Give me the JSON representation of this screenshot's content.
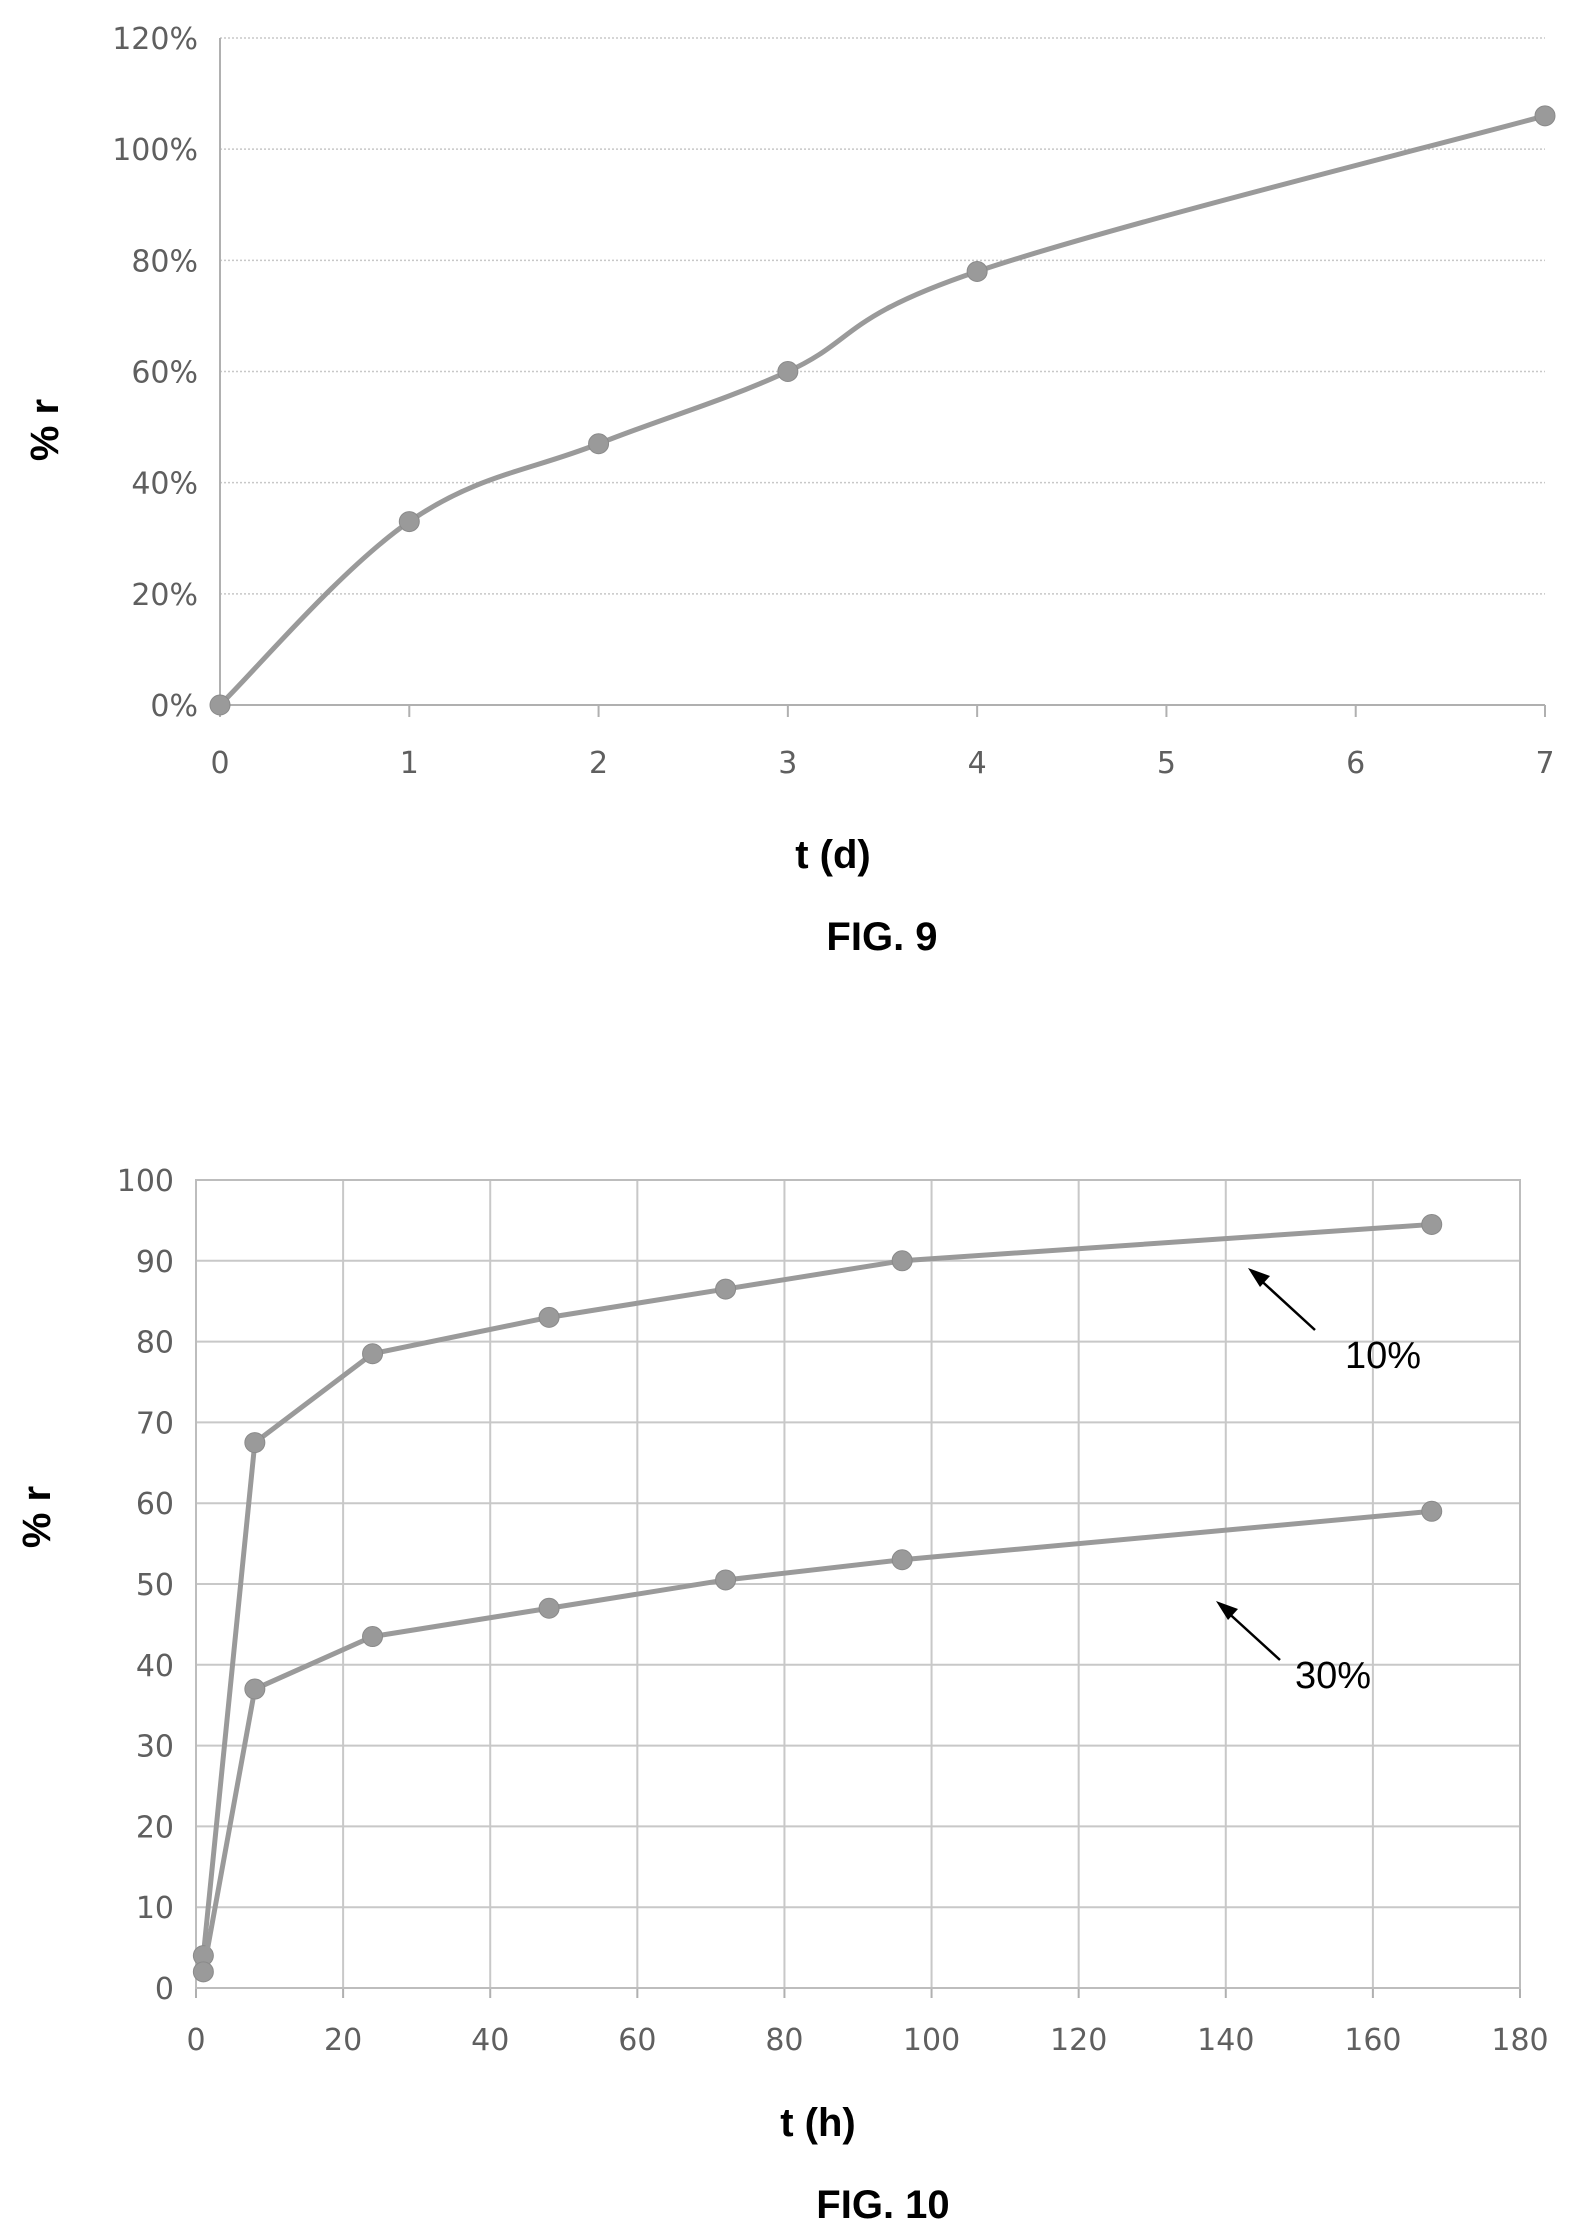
{
  "chart_data": [
    {
      "type": "line",
      "caption": "FIG. 9",
      "xlabel": "t (d)",
      "ylabel": "% r",
      "x_ticks": [
        "0",
        "1",
        "2",
        "3",
        "4",
        "5",
        "6",
        "7"
      ],
      "y_ticks": [
        "0%",
        "20%",
        "40%",
        "60%",
        "80%",
        "100%",
        "120%"
      ],
      "xlim": [
        0,
        7
      ],
      "ylim": [
        0,
        1.2
      ],
      "grid": "horizontal",
      "colors": {
        "series": "#9a9a9a",
        "grid": "#c8c8c8"
      },
      "series": [
        {
          "x": [
            0,
            1,
            2,
            3,
            4,
            7
          ],
          "y": [
            0.0,
            0.33,
            0.47,
            0.6,
            0.78,
            1.06
          ]
        }
      ]
    },
    {
      "type": "line",
      "caption": "FIG. 10",
      "xlabel": "t (h)",
      "ylabel": "% r",
      "x_ticks": [
        "0",
        "20",
        "40",
        "60",
        "80",
        "100",
        "120",
        "140",
        "160",
        "180"
      ],
      "y_ticks": [
        "0",
        "10",
        "20",
        "30",
        "40",
        "50",
        "60",
        "70",
        "80",
        "90",
        "100"
      ],
      "xlim": [
        0,
        180
      ],
      "ylim": [
        0,
        100
      ],
      "grid": "both",
      "colors": {
        "series": "#9a9a9a",
        "grid": "#c8c8c8"
      },
      "series": [
        {
          "name": "10%",
          "x": [
            1,
            8,
            24,
            48,
            72,
            96,
            168
          ],
          "y": [
            4,
            67.5,
            78.5,
            83,
            86.5,
            90,
            94.5
          ]
        },
        {
          "name": "30%",
          "x": [
            1,
            8,
            24,
            48,
            72,
            96,
            168
          ],
          "y": [
            2,
            37,
            43.5,
            47,
            50.5,
            53,
            59
          ]
        }
      ]
    }
  ]
}
